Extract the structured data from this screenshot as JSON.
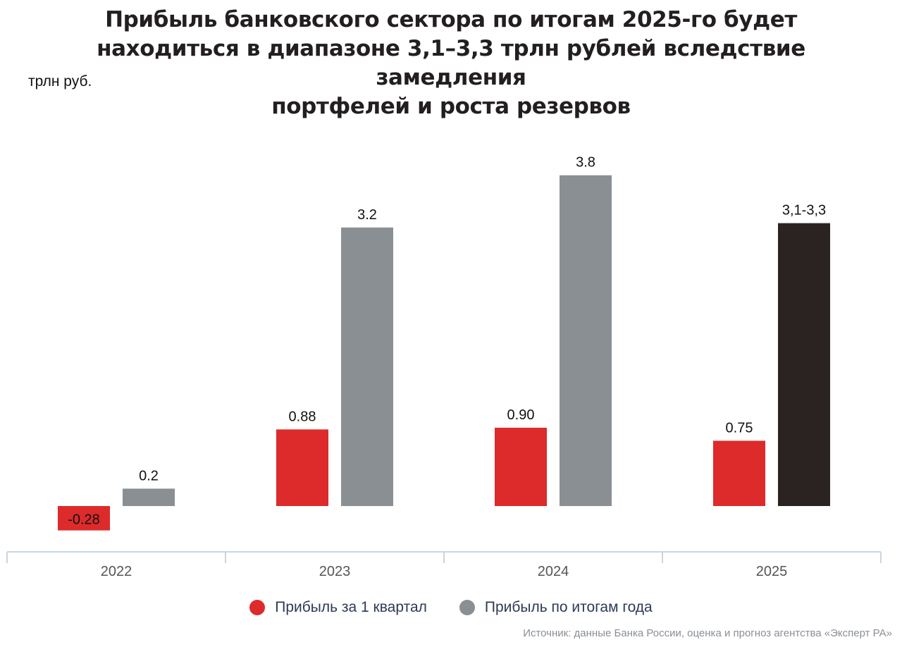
{
  "title_lines": [
    "Прибыль банковского сектора по итогам 2025-го будет",
    "находиться в диапазоне 3,1–3,3 трлн рублей вследствие замедления",
    "портфелей и роста резервов"
  ],
  "unit": "трлн руб.",
  "source": "Источник: данные Банка России, оценка и прогноз агентства «Эксперт РА»",
  "legend": {
    "q1": "Прибыль за 1 квартал",
    "year": "Прибыль по итогам года"
  },
  "colors": {
    "q1": "#dd2a2b",
    "year": "#8a8f93",
    "forecast": "#2b2322",
    "axis": "#c9d6e3",
    "tick_text": "#555555"
  },
  "chart_data": {
    "type": "bar",
    "categories": [
      "2022",
      "2023",
      "2024",
      "2025"
    ],
    "series": [
      {
        "name": "Прибыль за 1 квартал",
        "values": [
          -0.28,
          0.88,
          0.9,
          0.75
        ],
        "labels": [
          "-0.28",
          "0.88",
          "0.90",
          "0.75"
        ]
      },
      {
        "name": "Прибыль по итогам года",
        "values": [
          0.2,
          3.2,
          3.8,
          3.25
        ],
        "labels": [
          "0.2",
          "3.2",
          "3.8",
          "3,1-3,3"
        ],
        "forecast_index": 3
      }
    ],
    "ylabel": "трлн руб.",
    "ylim": [
      -0.28,
      3.8
    ]
  }
}
